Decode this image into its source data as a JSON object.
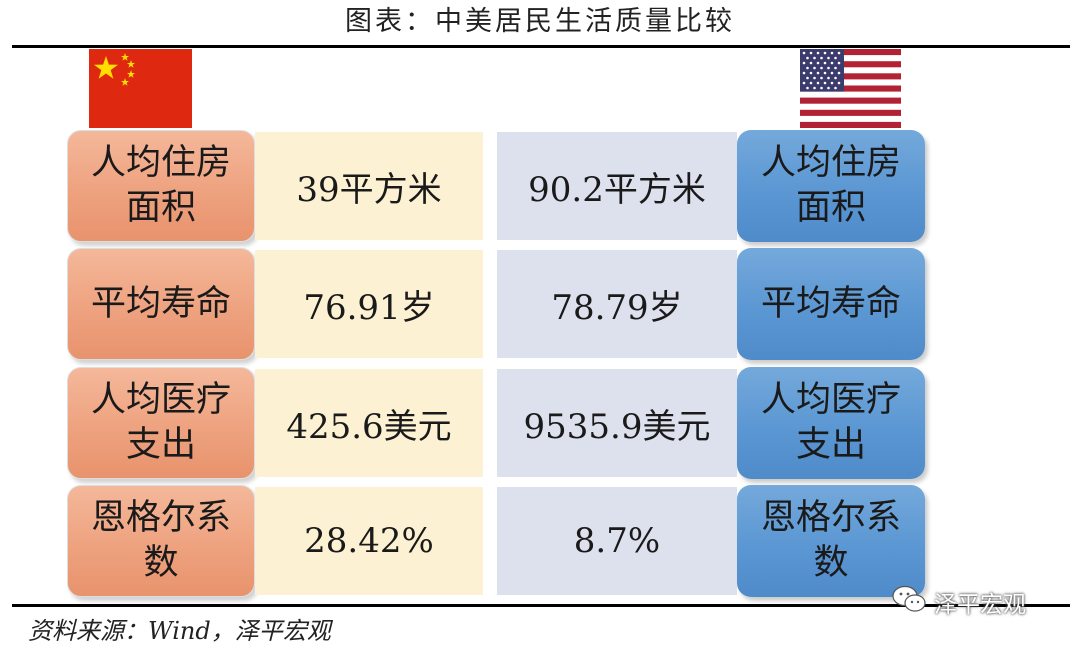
{
  "title": "图表：中美居民生活质量比较",
  "colors": {
    "china_flag": "#de2910",
    "china_label": "#eea27f",
    "china_value": "#fdf1d3",
    "us_label": "#5b97d3",
    "us_value": "#dde1ee"
  },
  "rows": [
    {
      "china_label": "人均住房面积",
      "china_value": "39平方米",
      "us_value": "90.2平方米",
      "us_label": "人均住房面积"
    },
    {
      "china_label": "平均寿命",
      "china_value": "76.91岁",
      "us_value": "78.79岁",
      "us_label": "平均寿命"
    },
    {
      "china_label": "人均医疗支出",
      "china_value": "425.6美元",
      "us_value": "9535.9美元",
      "us_label": "人均医疗支出"
    },
    {
      "china_label": "恩格尔系数",
      "china_value": "28.42%",
      "us_value": "8.7%",
      "us_label": "恩格尔系数"
    }
  ],
  "source": "资料来源：Wind，泽平宏观",
  "watermark": {
    "icon": "wechat-icon",
    "text": "泽平宏观"
  }
}
